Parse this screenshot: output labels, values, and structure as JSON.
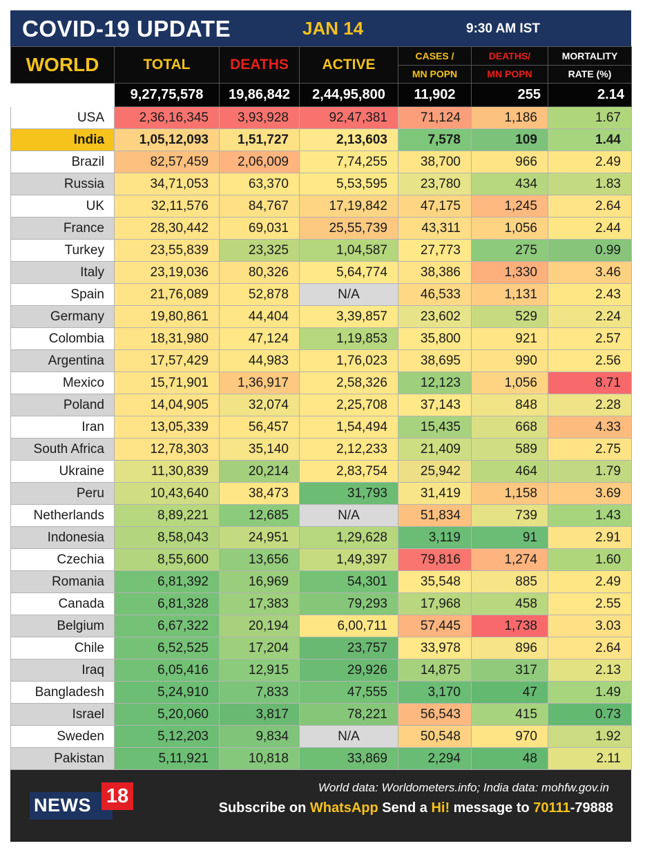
{
  "header": {
    "title": "COVID-19 UPDATE",
    "date": "JAN 14",
    "time": "9:30 AM IST"
  },
  "table": {
    "world_label": "WORLD",
    "columns": {
      "total": "TOTAL",
      "deaths": "DEATHS",
      "active": "ACTIVE",
      "cases_mn_1": "CASES /",
      "cases_mn_2": "MN POPN",
      "deaths_mn_1": "DEATHS/",
      "deaths_mn_2": "MN POPN",
      "mortality_1": "MORTALITY",
      "mortality_2": "RATE (%)"
    },
    "world_totals": [
      "9,27,75,578",
      "19,86,842",
      "2,44,95,800",
      "11,902",
      "255",
      "2.14"
    ],
    "rows": [
      {
        "country": "USA",
        "cells": [
          "2,36,16,345",
          "3,93,928",
          "92,47,381",
          "71,124",
          "1,186",
          "1.67"
        ],
        "colors": [
          "#f8736e",
          "#f8736e",
          "#f8736e",
          "#fb9f7a",
          "#fdc17f",
          "#b0d67c"
        ]
      },
      {
        "country": "India",
        "cells": [
          "1,05,12,093",
          "1,51,727",
          "2,13,603",
          "7,578",
          "109",
          "1.44"
        ],
        "colors": [
          "#fdd383",
          "#ffe185",
          "#ffe88b",
          "#7ec67a",
          "#7cc27a",
          "#a6d57e"
        ]
      },
      {
        "country": "Brazil",
        "cells": [
          "82,57,459",
          "2,06,009",
          "7,74,255",
          "38,700",
          "966",
          "2.49"
        ],
        "colors": [
          "#fdc07f",
          "#fdb47e",
          "#ffe887",
          "#ffe585",
          "#ffe486",
          "#ffe685"
        ]
      },
      {
        "country": "Russia",
        "cells": [
          "34,71,053",
          "63,370",
          "5,53,595",
          "23,780",
          "434",
          "1.83"
        ],
        "colors": [
          "#ffe386",
          "#ffe687",
          "#ffe887",
          "#e7e388",
          "#b6d77d",
          "#c3da80"
        ]
      },
      {
        "country": "UK",
        "cells": [
          "32,11,576",
          "84,767",
          "17,19,842",
          "47,175",
          "1,245",
          "2.64"
        ],
        "colors": [
          "#ffe386",
          "#fee185",
          "#fdd583",
          "#fed683",
          "#fdb97f",
          "#ffe386"
        ]
      },
      {
        "country": "France",
        "cells": [
          "28,30,442",
          "69,031",
          "25,55,739",
          "43,311",
          "1,056",
          "2.44"
        ],
        "colors": [
          "#ffe386",
          "#ffe486",
          "#fdc880",
          "#ffdd85",
          "#fed483",
          "#ffe685"
        ]
      },
      {
        "country": "Turkey",
        "cells": [
          "23,55,839",
          "23,325",
          "1,04,587",
          "27,773",
          "275",
          "0.99"
        ],
        "colors": [
          "#ffe386",
          "#bcd67e",
          "#b4d67d",
          "#ffe887",
          "#8dca7b",
          "#86c57a"
        ]
      },
      {
        "country": "Italy",
        "cells": [
          "23,19,036",
          "80,326",
          "5,64,774",
          "38,386",
          "1,330",
          "3.46"
        ],
        "colors": [
          "#ffe386",
          "#fee185",
          "#ffe887",
          "#ffe386",
          "#fdaf7c",
          "#fed182"
        ]
      },
      {
        "country": "Spain",
        "cells": [
          "21,76,089",
          "52,878",
          "N/A",
          "46,533",
          "1,131",
          "2.43"
        ],
        "colors": [
          "#ffe386",
          "#ffe586",
          "#d9d9d9",
          "#fed885",
          "#fecd81",
          "#ffe685"
        ]
      },
      {
        "country": "Germany",
        "cells": [
          "19,80,861",
          "44,404",
          "3,39,857",
          "23,602",
          "529",
          "2.24"
        ],
        "colors": [
          "#ffe386",
          "#fee686",
          "#ffe887",
          "#e7e388",
          "#c8da80",
          "#f0e486"
        ]
      },
      {
        "country": "Colombia",
        "cells": [
          "18,31,980",
          "47,124",
          "1,19,853",
          "35,800",
          "921",
          "2.57"
        ],
        "colors": [
          "#ffe386",
          "#ffe686",
          "#b6d77d",
          "#ffe887",
          "#ffe586",
          "#ffe686"
        ]
      },
      {
        "country": "Argentina",
        "cells": [
          "17,57,429",
          "44,983",
          "1,76,023",
          "38,695",
          "990",
          "2.56"
        ],
        "colors": [
          "#ffe386",
          "#fee686",
          "#ffe687",
          "#ffe587",
          "#ffe285",
          "#ffe686"
        ]
      },
      {
        "country": "Mexico",
        "cells": [
          "15,71,901",
          "1,36,917",
          "2,58,326",
          "12,123",
          "1,056",
          "8.71"
        ],
        "colors": [
          "#ffe386",
          "#fdc880",
          "#ffe687",
          "#9dcf7c",
          "#fed483",
          "#f8696b"
        ]
      },
      {
        "country": "Poland",
        "cells": [
          "14,04,905",
          "32,074",
          "2,25,708",
          "37,143",
          "848",
          "2.28"
        ],
        "colors": [
          "#ffe386",
          "#f1e386",
          "#ffe687",
          "#ffe887",
          "#f0e486",
          "#eee386"
        ]
      },
      {
        "country": "Iran",
        "cells": [
          "13,05,339",
          "56,457",
          "1,54,494",
          "15,435",
          "668",
          "4.33"
        ],
        "colors": [
          "#ffe386",
          "#ffe586",
          "#ffe687",
          "#a8d37e",
          "#dbdf83",
          "#fdbb7e"
        ]
      },
      {
        "country": "South Africa",
        "cells": [
          "12,78,303",
          "35,140",
          "2,12,233",
          "21,409",
          "589",
          "2.75"
        ],
        "colors": [
          "#ffe386",
          "#f7e587",
          "#ffe687",
          "#cddd82",
          "#d0dd83",
          "#ffe385"
        ]
      },
      {
        "country": "Ukraine",
        "cells": [
          "11,30,839",
          "20,214",
          "2,83,754",
          "25,942",
          "464",
          "1.79"
        ],
        "colors": [
          "#e1e185",
          "#a4d07d",
          "#ffe687",
          "#ecdf85",
          "#bbd87f",
          "#c1d982"
        ]
      },
      {
        "country": "Peru",
        "cells": [
          "10,43,640",
          "38,473",
          "31,793",
          "31,419",
          "1,158",
          "3.69"
        ],
        "colors": [
          "#d0dd82",
          "#fee686",
          "#6cbc73",
          "#f7e587",
          "#fec780",
          "#fdcb81"
        ]
      },
      {
        "country": "Netherlands",
        "cells": [
          "8,89,221",
          "12,685",
          "N/A",
          "51,834",
          "739",
          "1.43"
        ],
        "colors": [
          "#b6d77d",
          "#8ccb7b",
          "#d9d9d9",
          "#fdc07f",
          "#e5e185",
          "#a6d57e"
        ]
      },
      {
        "country": "Indonesia",
        "cells": [
          "8,58,043",
          "24,951",
          "1,29,628",
          "3,119",
          "91",
          "2.91"
        ],
        "colors": [
          "#b2d57d",
          "#c4da80",
          "#b6d77d",
          "#6bbd75",
          "#6bbd75",
          "#fee286"
        ]
      },
      {
        "country": "Czechia",
        "cells": [
          "8,55,600",
          "13,656",
          "1,49,397",
          "79,816",
          "1,274",
          "1.60"
        ],
        "colors": [
          "#b2d57d",
          "#92cc7c",
          "#c6da80",
          "#f8766f",
          "#fdb47e",
          "#b0d67c"
        ]
      },
      {
        "country": "Romania",
        "cells": [
          "6,81,392",
          "16,969",
          "54,301",
          "35,548",
          "885",
          "2.49"
        ],
        "colors": [
          "#75c277",
          "#9bce7c",
          "#75c277",
          "#ffe887",
          "#f6e487",
          "#ffe685"
        ]
      },
      {
        "country": "Canada",
        "cells": [
          "6,81,328",
          "17,383",
          "79,293",
          "17,968",
          "458",
          "2.55"
        ],
        "colors": [
          "#75c277",
          "#9dcf7c",
          "#85c679",
          "#b9d77f",
          "#b9d77f",
          "#ffe686"
        ]
      },
      {
        "country": "Belgium",
        "cells": [
          "6,67,322",
          "20,194",
          "6,00,711",
          "57,445",
          "1,738",
          "3.03"
        ],
        "colors": [
          "#75c277",
          "#a7d17d",
          "#ffe685",
          "#fdb47e",
          "#f8696b",
          "#fee085"
        ]
      },
      {
        "country": "Chile",
        "cells": [
          "6,52,525",
          "17,204",
          "23,757",
          "33,978",
          "896",
          "2.64"
        ],
        "colors": [
          "#75c277",
          "#9dcf7c",
          "#6ab972",
          "#ffe887",
          "#f6e487",
          "#ffe386"
        ]
      },
      {
        "country": "Iraq",
        "cells": [
          "6,05,416",
          "12,915",
          "29,926",
          "14,875",
          "317",
          "2.13"
        ],
        "colors": [
          "#72c176",
          "#8ccb7b",
          "#6bbb73",
          "#a6d27d",
          "#8fcb7b",
          "#e3e283"
        ]
      },
      {
        "country": "Bangladesh",
        "cells": [
          "5,24,910",
          "7,833",
          "47,555",
          "3,170",
          "47",
          "1.49"
        ],
        "colors": [
          "#6cbe74",
          "#7cc47a",
          "#75c277",
          "#6bbd75",
          "#64b971",
          "#a6d57e"
        ]
      },
      {
        "country": "Israel",
        "cells": [
          "5,20,060",
          "3,817",
          "78,221",
          "56,543",
          "415",
          "0.73"
        ],
        "colors": [
          "#6cbe74",
          "#6ab972",
          "#86c679",
          "#fdb87f",
          "#a8d37e",
          "#64b971"
        ]
      },
      {
        "country": "Sweden",
        "cells": [
          "5,12,203",
          "9,834",
          "N/A",
          "50,548",
          "970",
          "1.92"
        ],
        "colors": [
          "#6cbe74",
          "#80c47a",
          "#d9d9d9",
          "#fed182",
          "#ffe486",
          "#cadb81"
        ]
      },
      {
        "country": "Pakistan",
        "cells": [
          "5,11,921",
          "10,818",
          "33,869",
          "2,294",
          "48",
          "2.11"
        ],
        "colors": [
          "#6cbe74",
          "#86c87b",
          "#6ebe74",
          "#69bc74",
          "#64b971",
          "#e3e283"
        ]
      }
    ]
  },
  "footer": {
    "source": "World data: Worldometers.info; India data: mohfw.gov.in",
    "subscribe_1": "Subscribe on ",
    "subscribe_2": "WhatsApp",
    "subscribe_3": " Send a ",
    "subscribe_4": "Hi!",
    "subscribe_5": " message to ",
    "subscribe_6": "70111",
    "subscribe_7": "-79888",
    "logo_word": "NEWS",
    "logo_num": "18"
  },
  "colors": {
    "header_bg": "#1d3461",
    "accent_yellow": "#f6c21c",
    "accent_red": "#e8201c",
    "row_stripe_gray": "#d4d4d4"
  }
}
